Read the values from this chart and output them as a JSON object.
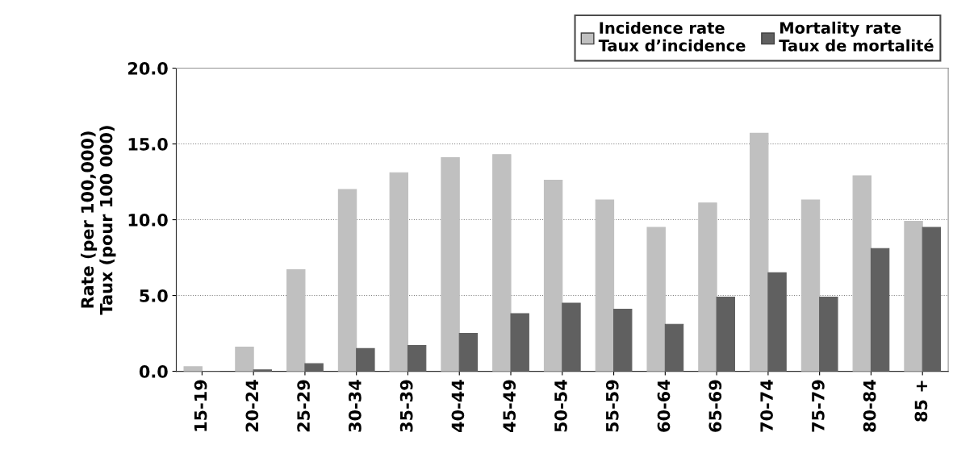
{
  "chart_data": {
    "type": "bar",
    "ylabel": "Rate (per 100,000)\nTaux (pour 100 000)",
    "categories": [
      "15-19",
      "20-24",
      "25-29",
      "30-34",
      "35-39",
      "40-44",
      "45-49",
      "50-54",
      "55-59",
      "60-64",
      "65-69",
      "70-74",
      "75-79",
      "80-84",
      "85 +"
    ],
    "series": [
      {
        "name": "Incidence rate\nTaux d’incidence",
        "color": "#c0c0c0",
        "values": [
          0.3,
          1.6,
          6.7,
          12.0,
          13.1,
          14.1,
          14.3,
          12.6,
          11.3,
          9.5,
          11.1,
          15.7,
          11.3,
          12.9,
          9.9
        ]
      },
      {
        "name": "Mortality rate\nTaux de mortalité",
        "color": "#606060",
        "values": [
          0.0,
          0.1,
          0.5,
          1.5,
          1.7,
          2.5,
          3.8,
          4.5,
          4.1,
          3.1,
          4.9,
          6.5,
          4.9,
          8.1,
          9.5
        ]
      }
    ],
    "ylim": [
      0,
      20
    ],
    "yticks": [
      {
        "value": 0,
        "label": "0.0"
      },
      {
        "value": 5,
        "label": "5.0"
      },
      {
        "value": 10,
        "label": "10.0"
      },
      {
        "value": 15,
        "label": "15.0"
      },
      {
        "value": 20,
        "label": "20.0"
      }
    ],
    "grid": "y",
    "legend": "top right"
  }
}
